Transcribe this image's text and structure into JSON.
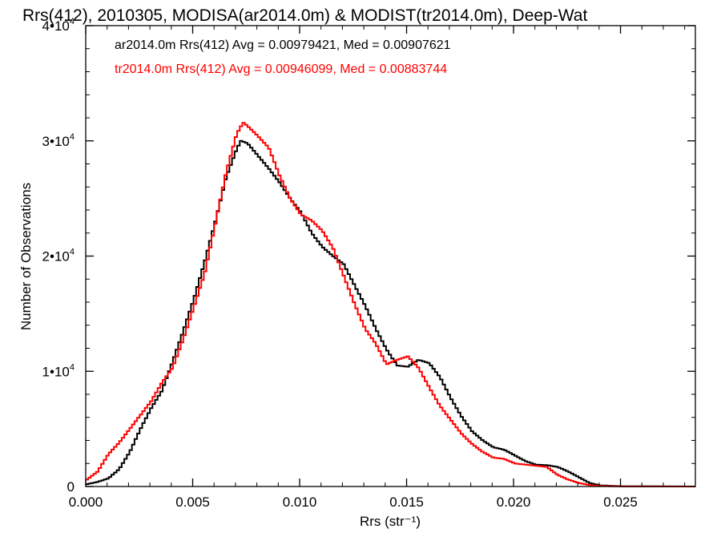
{
  "chart_data": {
    "type": "line",
    "title": "Rrs(412), 2010305, MODISA(ar2014.0m) & MODIST(tr2014.0m), Deep-Wat",
    "xlabel": "Rrs (str⁻¹)",
    "ylabel": "Number of Observations",
    "xlim": [
      0.0,
      0.0285
    ],
    "ylim": [
      0,
      40000
    ],
    "x_ticks": [
      "0.000",
      "0.005",
      "0.010",
      "0.015",
      "0.020",
      "0.025"
    ],
    "x_tick_values": [
      0.0,
      0.005,
      0.01,
      0.015,
      0.02,
      0.025
    ],
    "y_ticks": [
      {
        "value": 0,
        "mant": "0",
        "exp": ""
      },
      {
        "value": 10000,
        "mant": "1•10",
        "exp": "4"
      },
      {
        "value": 20000,
        "mant": "2•10",
        "exp": "4"
      },
      {
        "value": 30000,
        "mant": "3•10",
        "exp": "4"
      },
      {
        "value": 40000,
        "mant": "4•10",
        "exp": "4"
      }
    ],
    "annotations": [
      {
        "text": "ar2014.0m Rrs(412) Avg = 0.00979421, Med = 0.00907621",
        "color": "#000000"
      },
      {
        "text": "tr2014.0m Rrs(412) Avg = 0.00946099, Med = 0.00883744",
        "color": "#ff0000"
      }
    ],
    "series": [
      {
        "color": "#000000",
        "points": [
          [
            0.0,
            200
          ],
          [
            0.0005,
            400
          ],
          [
            0.001,
            700
          ],
          [
            0.0015,
            1500
          ],
          [
            0.002,
            3000
          ],
          [
            0.0025,
            5000
          ],
          [
            0.003,
            6800
          ],
          [
            0.0035,
            8300
          ],
          [
            0.004,
            10800
          ],
          [
            0.0045,
            13500
          ],
          [
            0.005,
            16300
          ],
          [
            0.0055,
            19500
          ],
          [
            0.006,
            23000
          ],
          [
            0.0065,
            26800
          ],
          [
            0.007,
            29300
          ],
          [
            0.0072,
            30000
          ],
          [
            0.0075,
            29800
          ],
          [
            0.008,
            28700
          ],
          [
            0.0085,
            27600
          ],
          [
            0.009,
            26400
          ],
          [
            0.0095,
            25000
          ],
          [
            0.01,
            23800
          ],
          [
            0.0105,
            22000
          ],
          [
            0.011,
            20800
          ],
          [
            0.0115,
            20000
          ],
          [
            0.012,
            19300
          ],
          [
            0.0125,
            17500
          ],
          [
            0.013,
            15700
          ],
          [
            0.0135,
            13700
          ],
          [
            0.014,
            11900
          ],
          [
            0.0145,
            10500
          ],
          [
            0.015,
            10400
          ],
          [
            0.0155,
            11000
          ],
          [
            0.016,
            10700
          ],
          [
            0.0165,
            9500
          ],
          [
            0.017,
            7700
          ],
          [
            0.0175,
            6100
          ],
          [
            0.018,
            4800
          ],
          [
            0.0185,
            4000
          ],
          [
            0.019,
            3400
          ],
          [
            0.0195,
            3200
          ],
          [
            0.02,
            2700
          ],
          [
            0.0205,
            2200
          ],
          [
            0.021,
            1900
          ],
          [
            0.0215,
            1850
          ],
          [
            0.022,
            1700
          ],
          [
            0.0225,
            1300
          ],
          [
            0.023,
            800
          ],
          [
            0.0235,
            300
          ],
          [
            0.024,
            100
          ],
          [
            0.025,
            20
          ],
          [
            0.0285,
            0
          ]
        ]
      },
      {
        "color": "#ff0000",
        "points": [
          [
            0.0,
            600
          ],
          [
            0.0005,
            1300
          ],
          [
            0.001,
            2800
          ],
          [
            0.0015,
            3800
          ],
          [
            0.002,
            5000
          ],
          [
            0.0025,
            6200
          ],
          [
            0.003,
            7400
          ],
          [
            0.0035,
            9000
          ],
          [
            0.004,
            10300
          ],
          [
            0.0045,
            12800
          ],
          [
            0.005,
            15600
          ],
          [
            0.0055,
            18500
          ],
          [
            0.006,
            22800
          ],
          [
            0.0065,
            27200
          ],
          [
            0.007,
            30600
          ],
          [
            0.0073,
            31600
          ],
          [
            0.0075,
            31300
          ],
          [
            0.008,
            30400
          ],
          [
            0.0085,
            29400
          ],
          [
            0.009,
            27000
          ],
          [
            0.0095,
            25000
          ],
          [
            0.01,
            23600
          ],
          [
            0.0105,
            23100
          ],
          [
            0.011,
            22200
          ],
          [
            0.0115,
            20700
          ],
          [
            0.012,
            18300
          ],
          [
            0.0125,
            15900
          ],
          [
            0.013,
            13700
          ],
          [
            0.0135,
            12400
          ],
          [
            0.014,
            10600
          ],
          [
            0.0145,
            11000
          ],
          [
            0.015,
            11300
          ],
          [
            0.0155,
            10300
          ],
          [
            0.016,
            8600
          ],
          [
            0.0165,
            7000
          ],
          [
            0.017,
            5800
          ],
          [
            0.0175,
            4600
          ],
          [
            0.018,
            3700
          ],
          [
            0.0185,
            3000
          ],
          [
            0.019,
            2500
          ],
          [
            0.0195,
            2400
          ],
          [
            0.02,
            2000
          ],
          [
            0.0205,
            1900
          ],
          [
            0.021,
            1800
          ],
          [
            0.0215,
            1700
          ],
          [
            0.022,
            1000
          ],
          [
            0.0225,
            600
          ],
          [
            0.023,
            300
          ],
          [
            0.0235,
            120
          ],
          [
            0.024,
            50
          ],
          [
            0.025,
            10
          ],
          [
            0.0285,
            0
          ]
        ]
      }
    ]
  }
}
